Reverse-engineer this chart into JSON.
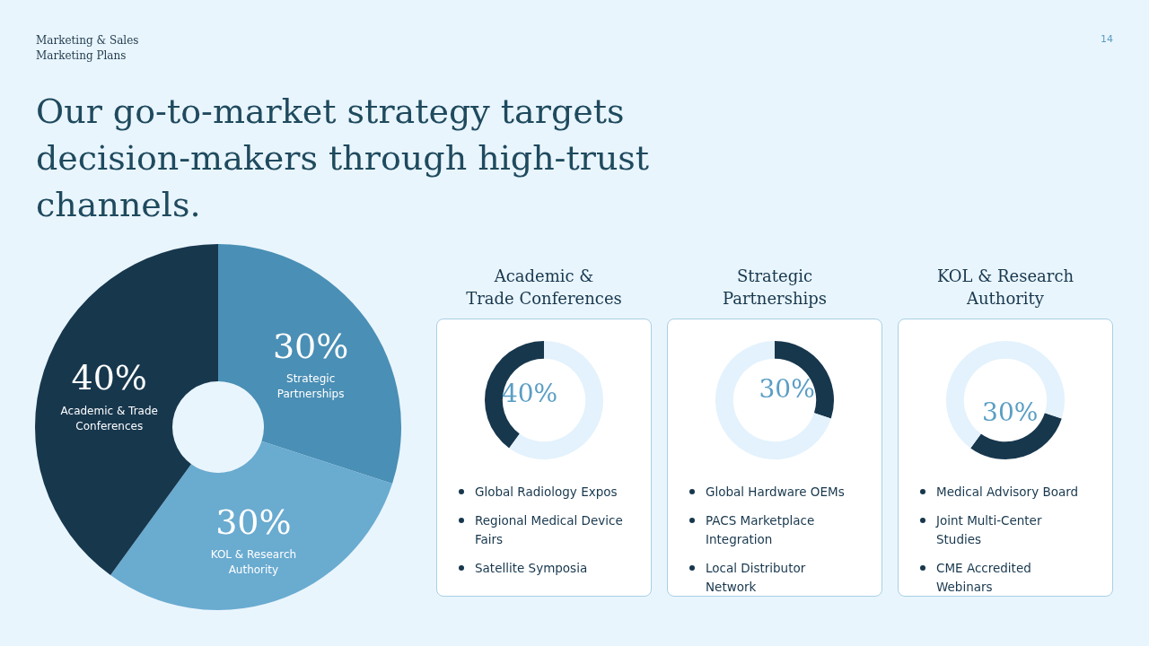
{
  "chart_data": [
    {
      "type": "donut",
      "title": "Our go-to-market strategy targets decision-makers through high-trust channels.",
      "annotations": [
        "Marketing & Sales",
        "Marketing Plans",
        "14"
      ],
      "categories": [
        "Strategic Partnerships",
        "KOL & Research Authority",
        "Academic & Trade Conferences"
      ],
      "values": [
        30,
        30,
        40
      ],
      "colors": [
        "#4a8fb5",
        "#6aabd0",
        "#17374d"
      ],
      "value_labels": [
        "30%",
        "30%",
        "40%"
      ],
      "legend": false
    },
    {
      "type": "donut",
      "title": "Academic &\nTrade Conferences",
      "categories": [
        null,
        null
      ],
      "values": [
        40,
        60
      ],
      "colors": [
        "#17374d",
        "#e3f2fc"
      ],
      "value_labels": [
        "40%",
        null
      ],
      "annotations": [
        "Global Radiology Expos",
        "Regional Medical Device Fairs",
        "Satellite Symposia"
      ],
      "legend": false
    },
    {
      "type": "donut",
      "title": "Strategic\nPartnerships",
      "categories": [
        null,
        null
      ],
      "values": [
        30,
        70
      ],
      "colors": [
        "#17374d",
        "#e3f2fc"
      ],
      "value_labels": [
        "30%",
        null
      ],
      "annotations": [
        "Global Hardware OEMs",
        "PACS Marketplace Integration",
        "Local Distributor Network"
      ],
      "legend": false
    },
    {
      "type": "donut",
      "title": "KOL & Research\nAuthority",
      "categories": [
        null,
        null
      ],
      "values": [
        30,
        70
      ],
      "colors": [
        "#17374d",
        "#e3f2fc"
      ],
      "value_labels": [
        "30%",
        null
      ],
      "annotations": [
        "Medical Advisory Board",
        "Joint Multi-Center Studies",
        "CME Accredited Webinars"
      ],
      "legend": false
    }
  ]
}
